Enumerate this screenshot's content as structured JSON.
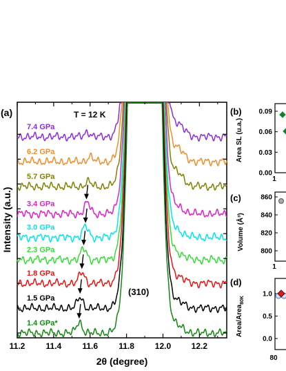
{
  "chart_data": [
    {
      "panel": "(a)",
      "type": "line",
      "annotation": "T = 12 K",
      "peak_label": "(310)",
      "xlabel": "2θ (degree)",
      "ylabel": "Intensity (a.u.)",
      "xlim": [
        11.2,
        12.35
      ],
      "x_ticks": [
        "11.2",
        "11.4",
        "11.6",
        "11.8",
        "12.0",
        "12.2"
      ],
      "x_tick_values": [
        11.2,
        11.4,
        11.6,
        11.8,
        12.0,
        12.2
      ],
      "series": [
        {
          "name": "7.4 GPa",
          "color": "#8a2be2",
          "baseline": 7.9,
          "sat_peak": 11.585,
          "arrow": null
        },
        {
          "name": "6.2 GPa",
          "color": "#f28c28",
          "baseline": 6.9,
          "sat_peak": 11.6,
          "arrow": null
        },
        {
          "name": "5.7 GPa",
          "color": "#808000",
          "baseline": 5.9,
          "sat_peak": 11.59,
          "arrow": null
        },
        {
          "name": "3.4 GPa",
          "color": "#e020c8",
          "baseline": 4.8,
          "sat_peak": 11.585,
          "arrow": 11.58
        },
        {
          "name": "3.0 GPa",
          "color": "#00e5ee",
          "baseline": 3.85,
          "sat_peak": 11.575,
          "arrow": 11.575
        },
        {
          "name": "2.3 GPa",
          "color": "#33dd33",
          "baseline": 2.95,
          "sat_peak": 11.565,
          "arrow": 11.565
        },
        {
          "name": "1.8 GPa",
          "color": "#ee1111",
          "baseline": 2.0,
          "sat_peak": 11.555,
          "arrow": 11.555
        },
        {
          "name": "1.5 GPa",
          "color": "#000000",
          "baseline": 1.0,
          "sat_peak": 11.545,
          "arrow": 11.545
        },
        {
          "name": "1.4 GPa*",
          "color": "#118811",
          "baseline": 0.0,
          "sat_peak": 11.54,
          "arrow": 11.54
        }
      ]
    },
    {
      "panel": "(b)",
      "type": "scatter",
      "ylabel": "Area SL (u.a.)",
      "y_ticks": [
        "0.00",
        "0.03",
        "0.06",
        "0.09"
      ],
      "x_ticks": [
        "1"
      ],
      "color": "#1a7a2a"
    },
    {
      "panel": "(c)",
      "type": "scatter",
      "ylabel": "Volume (Å³)",
      "y_ticks": [
        "800",
        "820",
        "840",
        "860"
      ],
      "x_ticks": [
        "1"
      ],
      "color": "#999999"
    },
    {
      "panel": "(d)",
      "type": "scatter",
      "ylabel": "Area/Area",
      "ylabel_sub": "80K",
      "y_ticks": [
        "0.0",
        "0.5",
        "1.0"
      ],
      "x_ticks": [
        "80"
      ],
      "colors": [
        "#cc2222",
        "#3377cc"
      ]
    }
  ]
}
